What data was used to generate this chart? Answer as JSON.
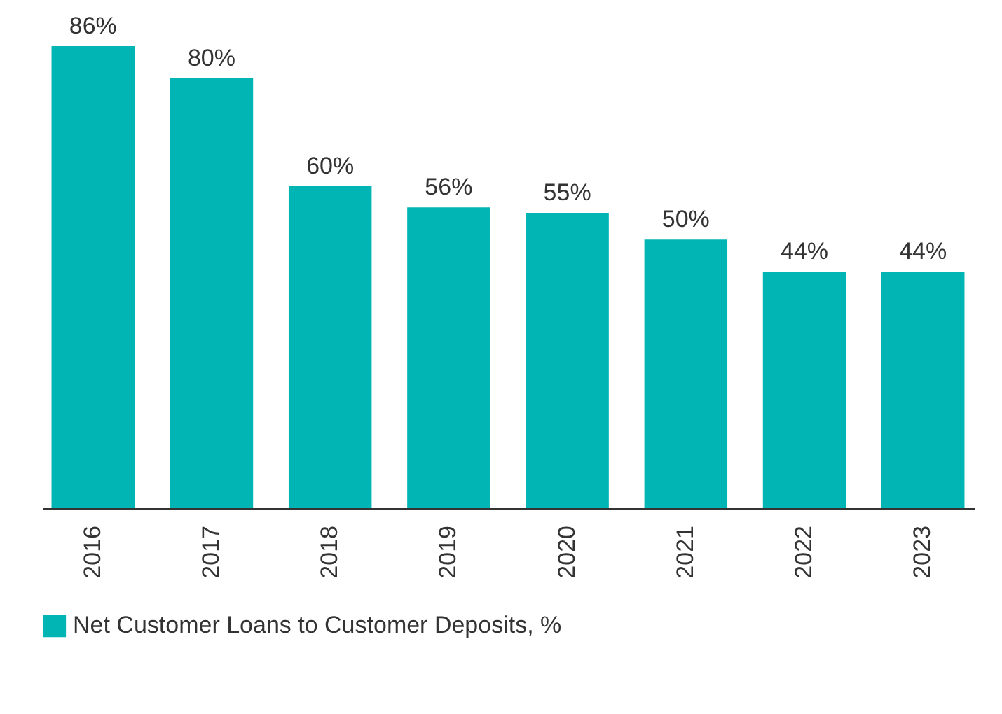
{
  "chart_data": {
    "type": "bar",
    "categories": [
      "2016",
      "2017",
      "2018",
      "2019",
      "2020",
      "2021",
      "2022",
      "2023"
    ],
    "series": [
      {
        "name": "Net Customer Loans to Customer Deposits, %",
        "color": "#00b5b3",
        "values": [
          86,
          80,
          60,
          56,
          55,
          50,
          44,
          44
        ],
        "value_labels": [
          "86%",
          "80%",
          "60%",
          "56%",
          "55%",
          "50%",
          "44%",
          "44%"
        ]
      }
    ],
    "legend": "bottom left",
    "grid": false
  }
}
